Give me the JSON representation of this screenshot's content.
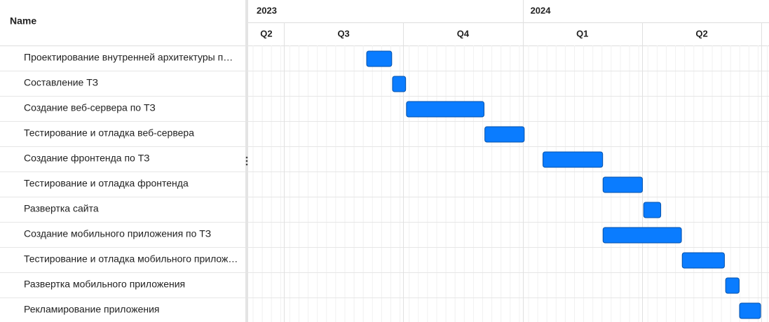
{
  "chart_data": {
    "type": "gantt",
    "name_header": "Name",
    "years": [
      {
        "label": "2023",
        "from": 0,
        "to": 12
      },
      {
        "label": "2024",
        "from": 12,
        "to": 24
      }
    ],
    "quarters": [
      {
        "label": "Q2",
        "from": 3,
        "to": 6
      },
      {
        "label": "Q3",
        "from": 6,
        "to": 9
      },
      {
        "label": "Q4",
        "from": 9,
        "to": 12
      },
      {
        "label": "Q1",
        "from": 12,
        "to": 15
      },
      {
        "label": "Q2",
        "from": 15,
        "to": 18
      }
    ],
    "xlim": [
      5.12,
      18.19
    ],
    "xticks": [
      6,
      9,
      12,
      15,
      18
    ],
    "color": "#0a7cff",
    "tasks": [
      {
        "name": "Проектирование внутренней архитектуры п…",
        "start": 8.08,
        "end": 8.71
      },
      {
        "name": "Составление ТЗ",
        "start": 8.73,
        "end": 9.06
      },
      {
        "name": "Создание веб-сервера по ТЗ",
        "start": 9.08,
        "end": 11.03
      },
      {
        "name": "Тестирование и отладка веб-сервера",
        "start": 11.05,
        "end": 12.04
      },
      {
        "name": "Создание фронтенда по ТЗ",
        "start": 12.51,
        "end": 14.01
      },
      {
        "name": "Тестирование и отладка фронтенда",
        "start": 14.02,
        "end": 15.01
      },
      {
        "name": "Развертка сайта",
        "start": 15.04,
        "end": 15.47
      },
      {
        "name": "Создание мобильного приложения по ТЗ",
        "start": 14.02,
        "end": 15.99
      },
      {
        "name": "Тестирование и отладка мобильного прилож…",
        "start": 16.01,
        "end": 17.07
      },
      {
        "name": "Развертка мобильного приложения",
        "start": 17.1,
        "end": 17.44
      },
      {
        "name": "Рекламирование приложения",
        "start": 17.45,
        "end": 17.98
      }
    ]
  }
}
